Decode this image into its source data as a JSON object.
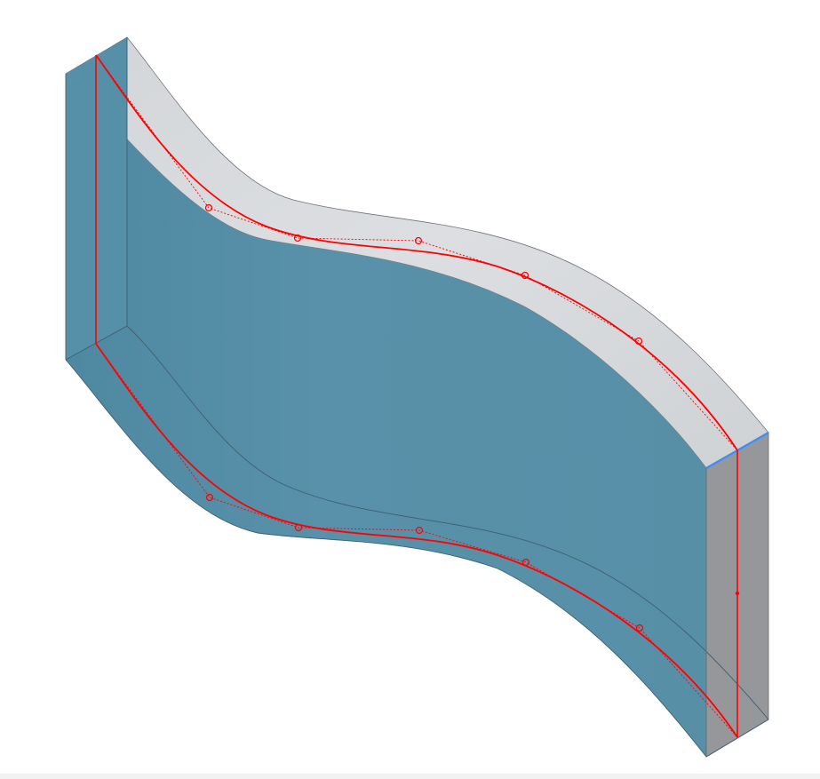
{
  "scene": {
    "colors": {
      "background": "#ffffff",
      "front_face": "#5790a8",
      "front_face_shade": "#4d86a0",
      "top_face": "#d0d3d7",
      "top_face_light": "#e0e2e5",
      "end_face": "#949699",
      "edge": "#3e5f70",
      "curve": "#ff0000",
      "selected_edge": "#3c8cff"
    },
    "controls": {
      "top_curve_point_count": 5,
      "bottom_curve_point_count": 5
    }
  }
}
